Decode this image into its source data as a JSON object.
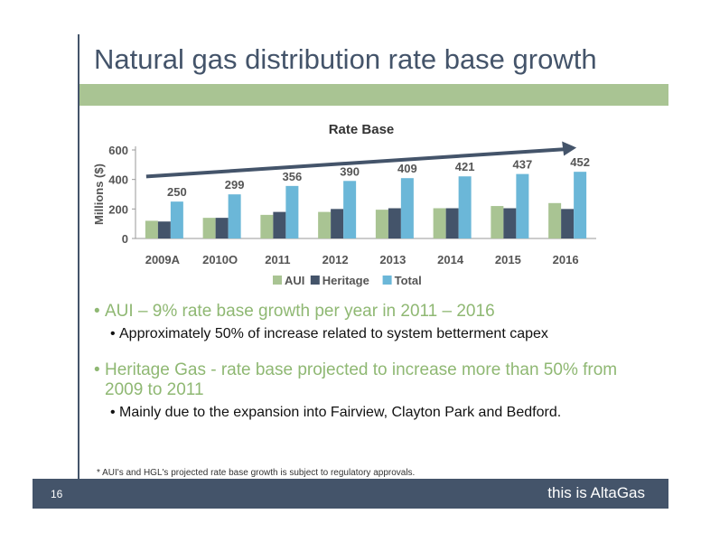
{
  "slide": {
    "title": "Natural gas distribution rate base growth",
    "brand": "AltaGas",
    "footnote": "* AUI's and HGL's projected rate base growth is subject to regulatory approvals.",
    "page_number": "16",
    "tagline": "this is AltaGas"
  },
  "bullets": [
    {
      "text": "AUI – 9% rate base growth per year in 2011 – 2016"
    },
    {
      "text": "Approximately 50% of increase related to system betterment capex"
    },
    {
      "text": "Heritage Gas - rate base projected to increase more than 50% from 2009 to 2011"
    },
    {
      "text": "Mainly due to the expansion into Fairview, Clayton Park and Bedford."
    }
  ],
  "colors": {
    "aui": "#a9c493",
    "heritage": "#44546a",
    "total": "#6bb7d8",
    "arrow": "#44546a",
    "accent_green": "#8fb873"
  },
  "chart_data": {
    "type": "bar",
    "title": "Rate Base",
    "ylabel": "Millions ($)",
    "ylim": [
      0,
      600
    ],
    "yticks": [
      0,
      200,
      400,
      600
    ],
    "categories": [
      "2009A",
      "2010O",
      "2011",
      "2012",
      "2013",
      "2014",
      "2015",
      "2016"
    ],
    "series": [
      {
        "name": "AUI",
        "values": [
          120,
          140,
          160,
          180,
          195,
          205,
          220,
          240
        ]
      },
      {
        "name": "Heritage",
        "values": [
          115,
          140,
          180,
          200,
          205,
          205,
          205,
          200
        ]
      },
      {
        "name": "Total",
        "values": [
          250,
          299,
          356,
          390,
          409,
          421,
          437,
          452
        ]
      }
    ],
    "data_labels": [
      "250",
      "299",
      "356",
      "390",
      "409",
      "421",
      "437",
      "452"
    ],
    "legend_position": "bottom",
    "trend_arrow": true
  }
}
